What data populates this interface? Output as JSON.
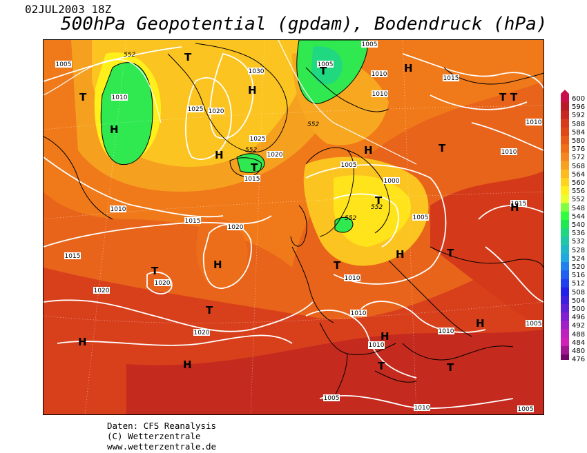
{
  "header": {
    "date": "02JUL2003 18Z",
    "title": "500hPa Geopotential (gpdam), Bodendruck (hPa)"
  },
  "footer": {
    "line1": "Daten: CFS Reanalysis",
    "line2": "(C) Wetterzentrale",
    "line3": "www.wetterzentrale.de"
  },
  "legend": {
    "levels": [
      "600",
      "596",
      "592",
      "588",
      "584",
      "580",
      "576",
      "572",
      "568",
      "564",
      "560",
      "556",
      "552",
      "548",
      "544",
      "540",
      "536",
      "532",
      "528",
      "524",
      "520",
      "516",
      "512",
      "508",
      "504",
      "500",
      "496",
      "492",
      "488",
      "484",
      "480",
      "476"
    ],
    "colors": [
      "#c8104a",
      "#b81a28",
      "#c82820",
      "#d83a1a",
      "#e04818",
      "#e85c18",
      "#f07018",
      "#f48820",
      "#f8a020",
      "#fcbc20",
      "#ffd41c",
      "#fff01c",
      "#e8ff30",
      "#80ff40",
      "#30ff40",
      "#20e850",
      "#20d880",
      "#20c8a8",
      "#20b8c8",
      "#20a8e0",
      "#2080f0",
      "#2060f0",
      "#2040f0",
      "#2020e8",
      "#4020e0",
      "#6020d8",
      "#8020d0",
      "#a020c8",
      "#c020c0",
      "#d020b8",
      "#a01890",
      "#700868"
    ]
  },
  "map": {
    "pressure_labels": [
      {
        "text": "1005"
      },
      {
        "text": "1010"
      },
      {
        "text": "1010"
      },
      {
        "text": "1030"
      },
      {
        "text": "1025"
      },
      {
        "text": "1020"
      },
      {
        "text": "1025"
      },
      {
        "text": "1020"
      },
      {
        "text": "1015"
      },
      {
        "text": "1005"
      },
      {
        "text": "1010"
      },
      {
        "text": "1010"
      },
      {
        "text": "1015"
      },
      {
        "text": "1010"
      },
      {
        "text": "1010"
      },
      {
        "text": "1005"
      },
      {
        "text": "1000"
      },
      {
        "text": "1005"
      },
      {
        "text": "1015"
      },
      {
        "text": "1020"
      },
      {
        "text": "1015"
      },
      {
        "text": "1020"
      },
      {
        "text": "1020"
      },
      {
        "text": "1020"
      },
      {
        "text": "1010"
      },
      {
        "text": "1010"
      },
      {
        "text": "1010"
      },
      {
        "text": "1010"
      },
      {
        "text": "1005"
      },
      {
        "text": "1005"
      },
      {
        "text": "1010"
      },
      {
        "text": "1005"
      },
      {
        "text": "1015"
      },
      {
        "text": "1005"
      },
      {
        "text": "1010"
      }
    ],
    "geopotential_labels": [
      {
        "text": "552"
      },
      {
        "text": "552"
      },
      {
        "text": "552"
      },
      {
        "text": "552"
      },
      {
        "text": "552"
      }
    ],
    "pressure_centers": [
      {
        "text": "H"
      },
      {
        "text": "T"
      },
      {
        "text": "H"
      },
      {
        "text": "T"
      },
      {
        "text": "H"
      },
      {
        "text": "T"
      },
      {
        "text": "T"
      },
      {
        "text": "H"
      },
      {
        "text": "T"
      },
      {
        "text": "T"
      },
      {
        "text": "H"
      },
      {
        "text": "H"
      },
      {
        "text": "T"
      },
      {
        "text": "T"
      },
      {
        "text": "H"
      },
      {
        "text": "T"
      },
      {
        "text": "H"
      },
      {
        "text": "T"
      },
      {
        "text": "H"
      },
      {
        "text": "T"
      },
      {
        "text": "H"
      },
      {
        "text": "T"
      },
      {
        "text": "H"
      },
      {
        "text": "H"
      },
      {
        "text": "T"
      },
      {
        "text": "T"
      }
    ]
  }
}
